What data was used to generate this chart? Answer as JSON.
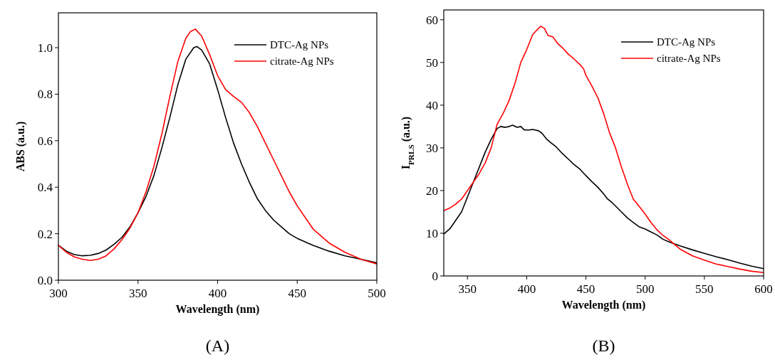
{
  "chart_data": [
    {
      "type": "line",
      "xlabel": "Wavelength (nm)",
      "ylabel": "ABS (a.u.)",
      "xlim": [
        300,
        500
      ],
      "ylim": [
        0,
        1.15
      ],
      "xticks": [
        300,
        350,
        400,
        450,
        500
      ],
      "yticks": [
        {
          "value": 0,
          "label": "0.0"
        },
        0.2,
        0.4,
        0.6,
        0.8,
        {
          "value": 1,
          "label": "1.0"
        }
      ],
      "legend": "top right",
      "grid": false,
      "annotations": [
        "(A)"
      ],
      "series": [
        {
          "name": "DTC-Ag NPs",
          "color": "#000000",
          "x": [
            300,
            305,
            310,
            315,
            320,
            325,
            330,
            335,
            340,
            345,
            350,
            355,
            360,
            365,
            370,
            375,
            380,
            385,
            387,
            390,
            395,
            400,
            405,
            410,
            415,
            420,
            425,
            430,
            435,
            440,
            445,
            450,
            460,
            470,
            480,
            490,
            500
          ],
          "values": [
            0.15,
            0.125,
            0.11,
            0.105,
            0.107,
            0.115,
            0.13,
            0.155,
            0.185,
            0.23,
            0.29,
            0.36,
            0.45,
            0.57,
            0.7,
            0.84,
            0.95,
            1.0,
            1.005,
            0.99,
            0.93,
            0.82,
            0.7,
            0.59,
            0.5,
            0.42,
            0.35,
            0.3,
            0.26,
            0.23,
            0.2,
            0.18,
            0.15,
            0.125,
            0.105,
            0.09,
            0.075
          ]
        },
        {
          "name": "citrate-Ag NPs",
          "color": "#ff0000",
          "x": [
            300,
            305,
            310,
            315,
            320,
            325,
            330,
            335,
            340,
            345,
            350,
            355,
            360,
            365,
            370,
            375,
            380,
            383,
            386,
            390,
            395,
            400,
            405,
            410,
            415,
            420,
            425,
            430,
            435,
            440,
            445,
            450,
            455,
            460,
            470,
            480,
            490,
            500
          ],
          "values": [
            0.15,
            0.12,
            0.1,
            0.09,
            0.085,
            0.09,
            0.105,
            0.135,
            0.175,
            0.225,
            0.29,
            0.38,
            0.49,
            0.63,
            0.79,
            0.94,
            1.04,
            1.07,
            1.08,
            1.05,
            0.97,
            0.88,
            0.82,
            0.79,
            0.765,
            0.72,
            0.66,
            0.59,
            0.52,
            0.45,
            0.38,
            0.32,
            0.27,
            0.22,
            0.16,
            0.12,
            0.09,
            0.07
          ]
        }
      ]
    },
    {
      "type": "line",
      "xlabel": "Wavelength (nm)",
      "ylabel": "I$_{PRLS}$ (a.u.)",
      "xlim": [
        330,
        600
      ],
      "ylim": [
        0,
        62.3
      ],
      "xticks": [
        350,
        400,
        450,
        500,
        550,
        600
      ],
      "yticks": [
        0,
        10,
        20,
        30,
        40,
        50,
        60
      ],
      "legend": "top right",
      "grid": false,
      "annotations": [
        "(B)"
      ],
      "series": [
        {
          "name": "DTC-Ag NPs",
          "color": "#000000",
          "x": [
            330,
            335,
            340,
            345,
            350,
            355,
            360,
            365,
            370,
            375,
            378,
            382,
            385,
            388,
            392,
            395,
            398,
            402,
            405,
            410,
            413,
            417,
            420,
            425,
            430,
            435,
            440,
            445,
            450,
            455,
            460,
            465,
            468,
            472,
            480,
            485,
            490,
            495,
            500,
            505,
            510,
            515,
            520,
            530,
            540,
            550,
            560,
            570,
            580,
            590,
            600
          ],
          "values": [
            9.8,
            11,
            13,
            15,
            18.5,
            22,
            25.5,
            29,
            32,
            34.5,
            35,
            34.8,
            35,
            35.3,
            34.8,
            35,
            34.2,
            34.2,
            34.3,
            34,
            33.4,
            32,
            31.3,
            30.2,
            28.7,
            27.4,
            26.1,
            25,
            23.5,
            22.1,
            20.8,
            19.2,
            18.1,
            17.2,
            15,
            13.6,
            12.5,
            11.5,
            11,
            10.3,
            9.6,
            8.6,
            8,
            7,
            6.1,
            5.3,
            4.5,
            3.8,
            3,
            2.3,
            1.7
          ]
        },
        {
          "name": "citrate-Ag NPs",
          "color": "#ff0000",
          "x": [
            330,
            335,
            340,
            345,
            350,
            355,
            360,
            365,
            370,
            375,
            380,
            385,
            390,
            395,
            400,
            405,
            410,
            412,
            415,
            418,
            422,
            426,
            430,
            435,
            440,
            445,
            448,
            450,
            455,
            460,
            465,
            470,
            475,
            480,
            485,
            490,
            495,
            500,
            505,
            510,
            515,
            520,
            530,
            540,
            550,
            560,
            570,
            580,
            590,
            600
          ],
          "values": [
            15.3,
            15.9,
            16.8,
            18,
            20,
            22,
            24,
            26.5,
            30,
            35.5,
            38,
            41,
            45,
            50,
            53,
            56.5,
            58,
            58.5,
            58,
            56.3,
            56,
            54.5,
            53.5,
            52,
            50.8,
            49.5,
            48.5,
            47,
            44.5,
            41.8,
            38,
            33.5,
            30,
            25.5,
            21.5,
            18,
            16.3,
            14.5,
            12.5,
            10.8,
            9.5,
            8.5,
            6.2,
            4.7,
            3.7,
            2.8,
            2.2,
            1.6,
            1.1,
            0.8
          ]
        }
      ]
    }
  ]
}
